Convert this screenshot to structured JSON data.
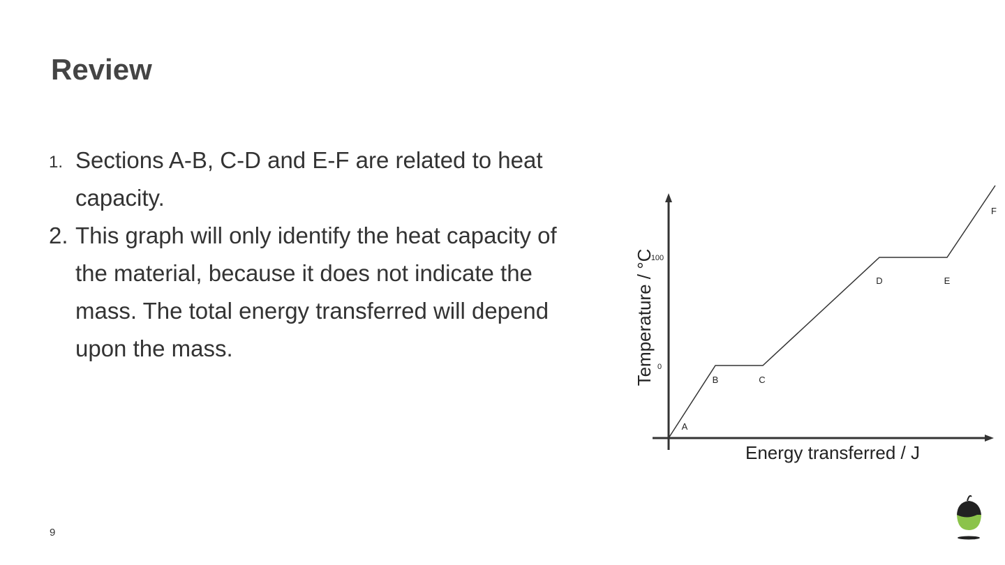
{
  "header": {
    "title": "Review"
  },
  "list": {
    "items": [
      {
        "number": "1.",
        "text": "Sections A-B, C-D and E-F are related to heat capacity."
      },
      {
        "number": "2.",
        "text": "This graph will only identify the heat capacity of the material, because it does not indicate the mass. The total energy transferred will depend upon the mass."
      }
    ]
  },
  "graph": {
    "x_label": "Energy transferred / J",
    "y_label": "Temperature / °C",
    "y_tick_labels": [
      100,
      0
    ],
    "point_labels": [
      "A",
      "B",
      "C",
      "D",
      "E",
      "F"
    ]
  },
  "footer": {
    "page_number": 9
  }
}
